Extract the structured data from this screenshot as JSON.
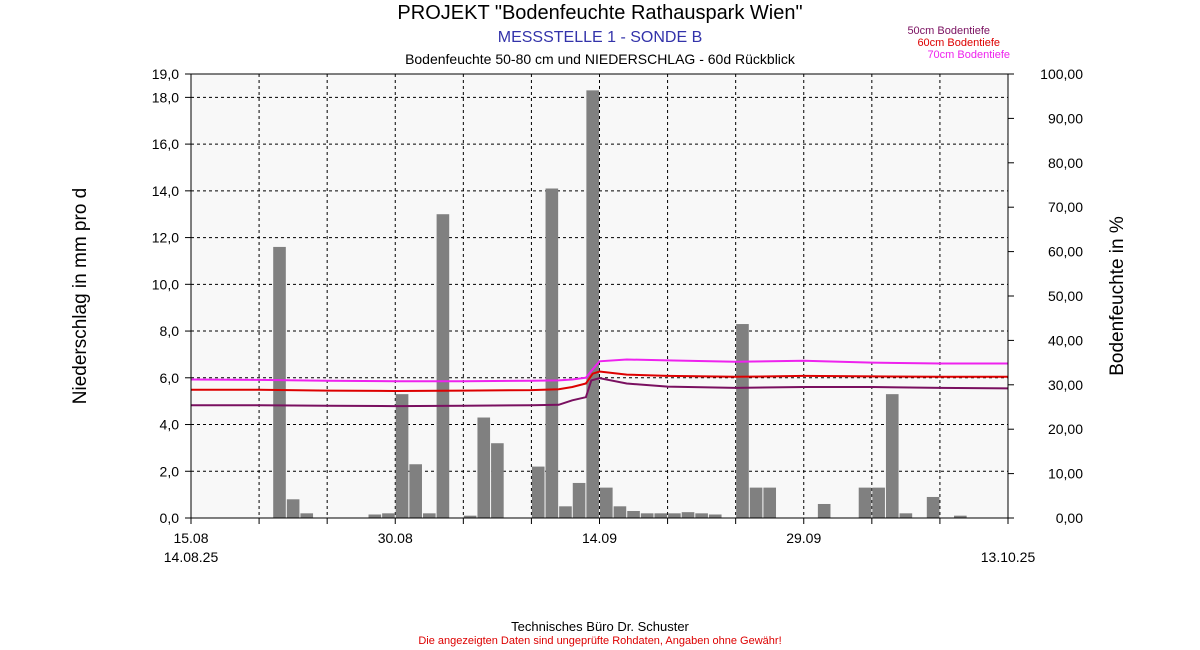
{
  "header": {
    "title": "PROJEKT \"Bodenfeuchte Rathauspark Wien\"",
    "subtitle1": "MESSSTELLE 1 - SONDE B",
    "subtitle2": "Bodenfeuchte 50-80 cm und NIEDERSCHLAG - 60d Rückblick"
  },
  "footer": {
    "company": "Technisches Büro Dr. Schuster",
    "disclaimer": "Die angezeigten Daten sind ungeprüfte Rohdaten, Angaben ohne Gewähr!"
  },
  "colors": {
    "title_blue": "#3333aa",
    "disclaimer_red": "#dd0000",
    "bar": "#808080",
    "plot_bg": "#f8f8f8"
  },
  "chart_data": {
    "type": "bar+line",
    "x_labels": [
      {
        "day": 0,
        "label": "15.08",
        "sublabel": "14.08.25"
      },
      {
        "day": 15,
        "label": "30.08"
      },
      {
        "day": 30,
        "label": "14.09"
      },
      {
        "day": 45,
        "label": "29.09"
      },
      {
        "day": 60,
        "label": "",
        "sublabel": "13.10.25"
      }
    ],
    "x_range_days": [
      0,
      60
    ],
    "y_left": {
      "label": "Niederschlag in mm pro d",
      "range": [
        0,
        19
      ],
      "ticks": [
        "0,0",
        "2,0",
        "4,0",
        "6,0",
        "8,0",
        "10,0",
        "12,0",
        "14,0",
        "16,0",
        "18,0",
        "19,0"
      ],
      "tick_values": [
        0,
        2,
        4,
        6,
        8,
        10,
        12,
        14,
        16,
        18,
        19
      ]
    },
    "y_right": {
      "label": "Bodenfeuchte in %",
      "range": [
        0,
        100
      ],
      "ticks": [
        "0,00",
        "10,00",
        "20,00",
        "30,00",
        "40,00",
        "50,00",
        "60,00",
        "70,00",
        "80,00",
        "90,00",
        "100,00"
      ],
      "tick_values": [
        0,
        10,
        20,
        30,
        40,
        50,
        60,
        70,
        80,
        90,
        100
      ]
    },
    "grid": true,
    "precipitation": {
      "name": "Niederschlag",
      "values": [
        0,
        0,
        0,
        0,
        0,
        0,
        11.6,
        0.8,
        0.2,
        0,
        0,
        0,
        0,
        0.15,
        0.2,
        5.3,
        2.3,
        0.2,
        13.0,
        0,
        0.1,
        4.3,
        3.2,
        0,
        0,
        2.2,
        14.1,
        0.5,
        1.5,
        18.3,
        1.3,
        0.5,
        0.3,
        0.2,
        0.2,
        0.2,
        0.25,
        0.2,
        0.15,
        0,
        8.3,
        1.3,
        1.3,
        0,
        0,
        0,
        0.6,
        0,
        0,
        1.3,
        1.3,
        5.3,
        0.2,
        0,
        0.9,
        0,
        0.1,
        0,
        0,
        0
      ]
    },
    "series": [
      {
        "name": "50cm Bodentiefe",
        "color": "#7a1060",
        "points": [
          [
            0,
            25.4
          ],
          [
            5,
            25.4
          ],
          [
            10,
            25.3
          ],
          [
            15,
            25.2
          ],
          [
            20,
            25.3
          ],
          [
            25,
            25.4
          ],
          [
            27,
            25.5
          ],
          [
            28,
            26.5
          ],
          [
            29,
            27.2
          ],
          [
            29.4,
            31.0
          ],
          [
            30,
            31.5
          ],
          [
            32,
            30.3
          ],
          [
            35,
            29.6
          ],
          [
            40,
            29.3
          ],
          [
            45,
            29.5
          ],
          [
            50,
            29.5
          ],
          [
            55,
            29.3
          ],
          [
            60,
            29.2
          ]
        ]
      },
      {
        "name": "60cm Bodentiefe",
        "color": "#dd0000",
        "points": [
          [
            0,
            28.9
          ],
          [
            5,
            28.9
          ],
          [
            10,
            28.7
          ],
          [
            15,
            28.6
          ],
          [
            20,
            28.7
          ],
          [
            25,
            28.8
          ],
          [
            27,
            29.0
          ],
          [
            28,
            29.5
          ],
          [
            29,
            30.3
          ],
          [
            29.5,
            32.5
          ],
          [
            30,
            33.0
          ],
          [
            32,
            32.3
          ],
          [
            35,
            32.0
          ],
          [
            40,
            31.8
          ],
          [
            45,
            32.0
          ],
          [
            50,
            31.9
          ],
          [
            55,
            31.8
          ],
          [
            60,
            31.8
          ]
        ]
      },
      {
        "name": "70cm Bodentiefe",
        "color": "#ee22ee",
        "points": [
          [
            0,
            31.2
          ],
          [
            5,
            31.1
          ],
          [
            10,
            30.9
          ],
          [
            15,
            30.8
          ],
          [
            20,
            30.8
          ],
          [
            25,
            30.9
          ],
          [
            27,
            31.0
          ],
          [
            28,
            31.2
          ],
          [
            29,
            31.6
          ],
          [
            29.5,
            33.5
          ],
          [
            30,
            35.3
          ],
          [
            32,
            35.7
          ],
          [
            35,
            35.5
          ],
          [
            40,
            35.2
          ],
          [
            45,
            35.4
          ],
          [
            50,
            35.0
          ],
          [
            55,
            34.8
          ],
          [
            60,
            34.8
          ]
        ]
      }
    ]
  }
}
